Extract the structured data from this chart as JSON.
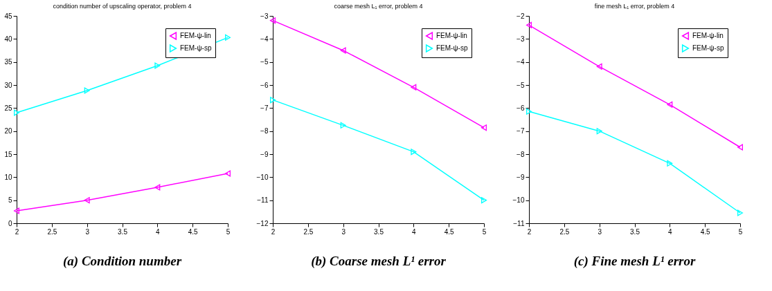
{
  "chart_data": [
    {
      "type": "line",
      "title": "condition number of upscaling operator, problem 4",
      "annotations": [
        "(a) Condition number"
      ],
      "x": [
        2,
        3,
        4,
        5
      ],
      "xlim": [
        2,
        5
      ],
      "xticks": [
        2,
        2.5,
        3,
        3.5,
        4,
        4.5,
        5
      ],
      "ylim": [
        0,
        45
      ],
      "yticks": [
        0,
        5,
        10,
        15,
        20,
        25,
        30,
        35,
        40,
        45
      ],
      "grid": false,
      "legend": "top right",
      "series": [
        {
          "name": "FEM-ψ-lin",
          "color": "#ff00ff",
          "marker": "triangle-left",
          "values": [
            2.7,
            5.0,
            7.8,
            10.8
          ]
        },
        {
          "name": "FEM-ψ-sp",
          "color": "#00ffff",
          "marker": "triangle-right",
          "values": [
            24.0,
            28.8,
            34.2,
            40.3
          ]
        }
      ]
    },
    {
      "type": "line",
      "title": "coarse mesh L₁ error, problem 4",
      "annotations": [
        "(b) Coarse mesh L¹ error"
      ],
      "x": [
        2,
        3,
        4,
        5
      ],
      "xlim": [
        2,
        5
      ],
      "xticks": [
        2,
        2.5,
        3,
        3.5,
        4,
        4.5,
        5
      ],
      "ylim": [
        -12,
        -3
      ],
      "yticks": [
        -12,
        -11,
        -10,
        -9,
        -8,
        -7,
        -6,
        -5,
        -4,
        -3
      ],
      "grid": false,
      "legend": "top right",
      "series": [
        {
          "name": "FEM-ψ-lin",
          "color": "#ff00ff",
          "marker": "triangle-left",
          "values": [
            -3.2,
            -4.5,
            -6.1,
            -7.85
          ]
        },
        {
          "name": "FEM-ψ-sp",
          "color": "#00ffff",
          "marker": "triangle-right",
          "values": [
            -6.65,
            -7.75,
            -8.9,
            -11.0
          ]
        }
      ]
    },
    {
      "type": "line",
      "title": "fine mesh L₁ error, problem 4",
      "annotations": [
        "(c) Fine mesh L¹ error"
      ],
      "x": [
        2,
        3,
        4,
        5
      ],
      "xlim": [
        2,
        5
      ],
      "xticks": [
        2,
        2.5,
        3,
        3.5,
        4,
        4.5,
        5
      ],
      "ylim": [
        -11,
        -2
      ],
      "yticks": [
        -11,
        -10,
        -9,
        -8,
        -7,
        -6,
        -5,
        -4,
        -3,
        -2
      ],
      "grid": false,
      "legend": "top right",
      "series": [
        {
          "name": "FEM-ψ-lin",
          "color": "#ff00ff",
          "marker": "triangle-left",
          "values": [
            -2.4,
            -4.2,
            -5.85,
            -7.7
          ]
        },
        {
          "name": "FEM-ψ-sp",
          "color": "#00ffff",
          "marker": "triangle-right",
          "values": [
            -6.15,
            -7.0,
            -8.4,
            -10.55
          ]
        }
      ]
    }
  ]
}
